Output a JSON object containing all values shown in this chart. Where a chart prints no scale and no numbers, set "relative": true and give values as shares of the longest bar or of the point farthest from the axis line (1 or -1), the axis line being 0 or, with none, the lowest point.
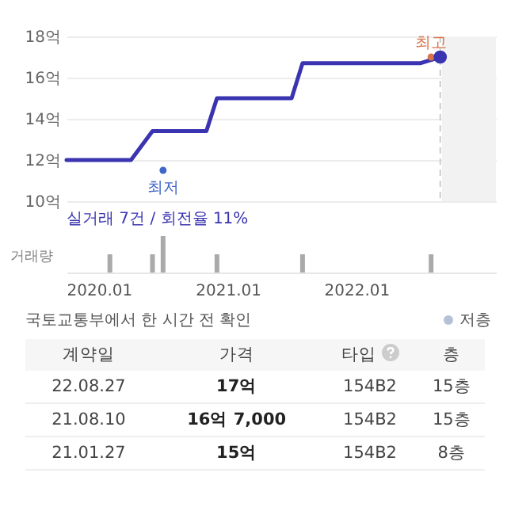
{
  "chart_data": [
    {
      "type": "line",
      "xlim": [
        "2019-10",
        "2023-02"
      ],
      "ylim": [
        10,
        18
      ],
      "yticks": [
        {
          "value": 10,
          "label": "10억"
        },
        {
          "value": 12,
          "label": "12억"
        },
        {
          "value": 14,
          "label": "14억"
        },
        {
          "value": 16,
          "label": "16억"
        },
        {
          "value": 18,
          "label": "18억"
        }
      ],
      "tick_labels": "y",
      "grid": "y",
      "marker": "none",
      "line_style": "solid",
      "series": [
        {
          "color": "#3a34b0",
          "x": [
            "2019-10",
            "2020-04",
            "2020-06",
            "2020-11",
            "2020-12",
            "2021-07",
            "2021-08",
            "2022-07",
            "2022-08-27"
          ],
          "values": [
            12,
            12,
            13.4,
            13.4,
            15,
            15,
            16.7,
            16.7,
            17
          ]
        },
        {
          "type": "scatter",
          "marker": "circle",
          "color": "#3f67c8",
          "x": [
            "2020-07"
          ],
          "values": [
            11.5
          ]
        },
        {
          "type": "scatter",
          "marker": "circle",
          "color": "#d9734a",
          "x": [
            "2022-08"
          ],
          "values": [
            17
          ]
        }
      ],
      "bands": [
        {
          "axis": "x",
          "from": "2022-09",
          "to": "2023-02",
          "color": "#f2f2f2"
        }
      ],
      "ref_lines": [
        {
          "axis": "x",
          "value": "2022-08-27",
          "color": "#cccccc",
          "line_style": "dashed"
        }
      ],
      "annotations": [
        {
          "text": "최저",
          "x": "2020-07",
          "y": 11.5
        },
        {
          "text": "최고",
          "x": "2022-08",
          "y": 17
        },
        "실거래 7건 / 회전율 11%"
      ]
    },
    {
      "type": "bar",
      "relative": true,
      "ylabel": "거래량",
      "xlim": [
        "2019-10",
        "2023-02"
      ],
      "xticks": [
        {
          "value": "2020-01",
          "label": "2020.01"
        },
        {
          "value": "2021-01",
          "label": "2021.01"
        },
        {
          "value": "2022-01",
          "label": "2022.01"
        }
      ],
      "x": [
        "2020-02",
        "2020-06",
        "2020-07",
        "2020-12",
        "2021-08",
        "2022-08"
      ],
      "values": [
        0.5,
        0.5,
        1,
        0.5,
        0.5,
        0.5
      ],
      "color": "#aaaaaa",
      "annotations": [
        "국토교통부에서 한 시간 전 확인",
        "저층"
      ]
    },
    {
      "type": "other",
      "categories": [
        "계약일",
        "가격",
        "타입",
        "층"
      ],
      "annotations": [
        "22.08.27",
        "17억",
        "154B2",
        "15층",
        "21.08.10",
        "16억 7,000",
        "154B2",
        "15층",
        "21.01.27",
        "15억",
        "154B2",
        "8층"
      ]
    }
  ]
}
